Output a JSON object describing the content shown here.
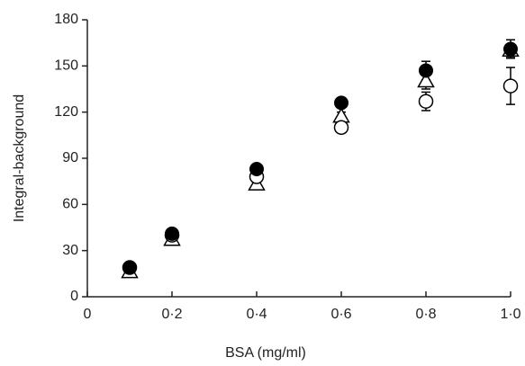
{
  "chart_data": {
    "type": "scatter",
    "x_label": "BSA (mg/ml)",
    "y_label": "Integral-background",
    "x": [
      0.1,
      0.2,
      0.4,
      0.6,
      0.8,
      1.0
    ],
    "series": [
      {
        "marker": "filled-circle",
        "color": "#000000",
        "values": [
          19,
          41,
          83,
          126,
          147,
          161
        ],
        "errors": [
          1,
          2,
          3,
          2,
          6,
          6
        ]
      },
      {
        "marker": "open-circle",
        "color": "#000000",
        "values": [
          19,
          40,
          78,
          110,
          127,
          137
        ],
        "errors": [
          1,
          2,
          3,
          2,
          6,
          12
        ]
      },
      {
        "marker": "open-triangle",
        "color": "#000000",
        "values": [
          16,
          37,
          73,
          117,
          140,
          160
        ],
        "errors": [
          1,
          2,
          3,
          3,
          5,
          4
        ]
      }
    ],
    "xlim": [
      0,
      1.0
    ],
    "xticks": [
      0,
      {
        "value": 0.2,
        "label": "0·2"
      },
      {
        "value": 0.4,
        "label": "0·4"
      },
      {
        "value": 0.6,
        "label": "0·6"
      },
      {
        "value": 0.8,
        "label": "0·8"
      },
      {
        "value": 1.0,
        "label": "1·0"
      }
    ],
    "ylim": [
      0,
      180
    ],
    "yticks": [
      0,
      30,
      60,
      90,
      120,
      150,
      180
    ],
    "grid": false
  }
}
